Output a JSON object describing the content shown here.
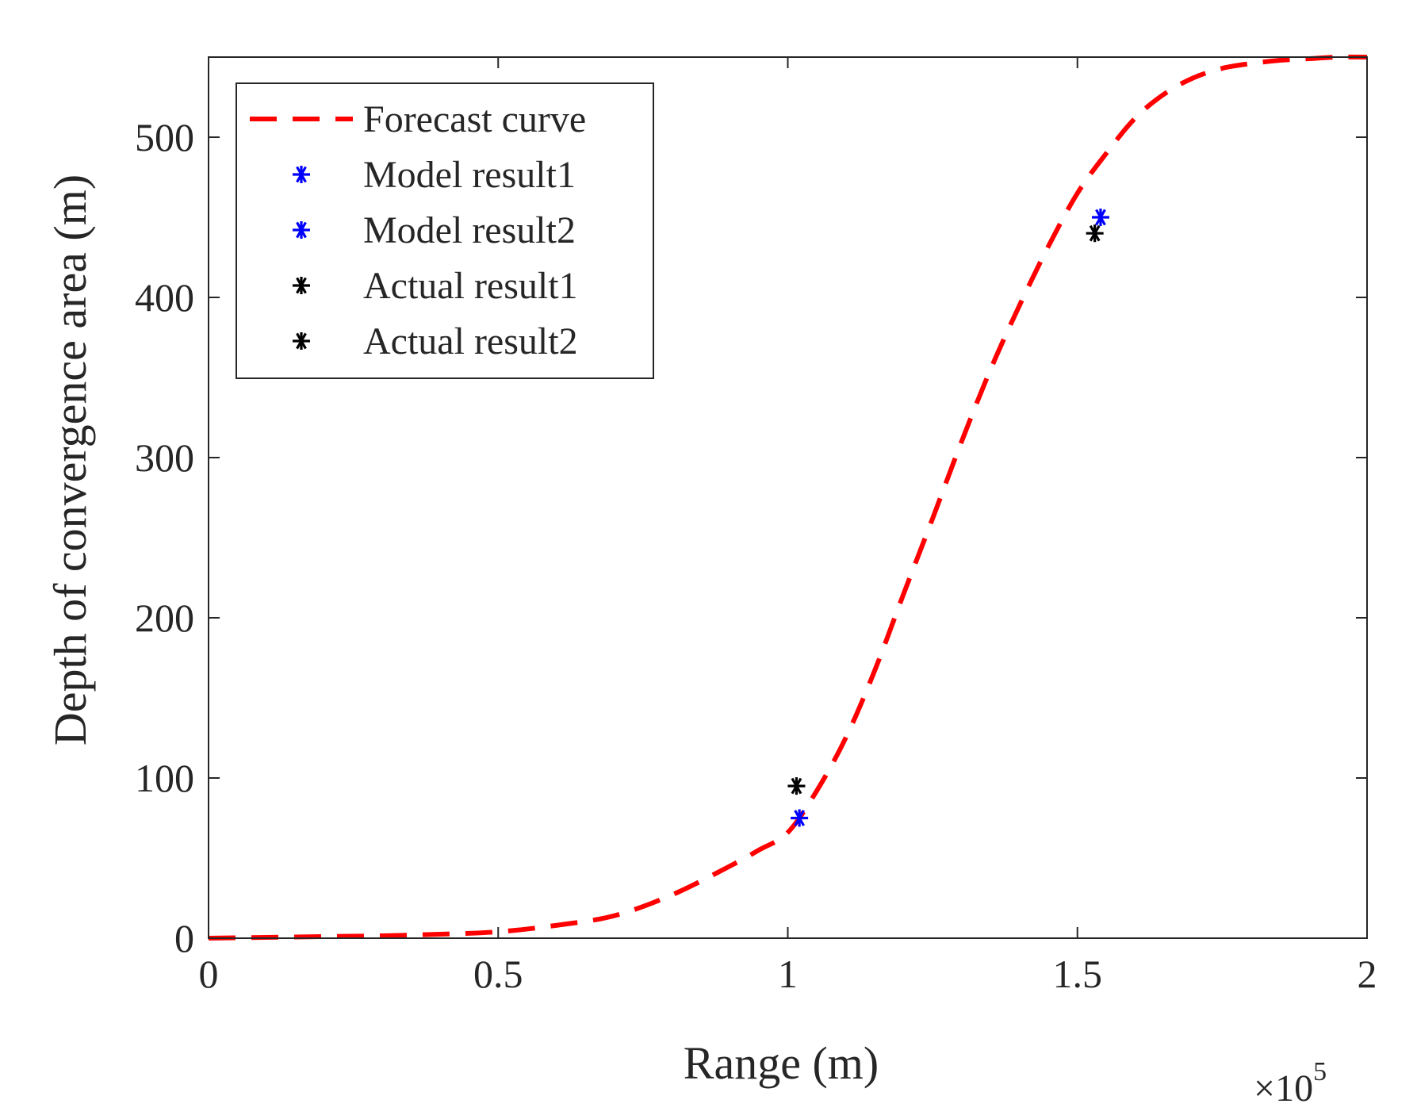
{
  "chart_data": {
    "type": "line",
    "title": "",
    "xlabel": "Range (m)",
    "ylabel": "Depth of convergence area (m)",
    "x_scale_label": "×10",
    "x_scale_exponent": "5",
    "xlim": [
      0,
      2
    ],
    "ylim": [
      0,
      550
    ],
    "x_ticks": [
      0,
      0.5,
      1,
      1.5,
      2
    ],
    "x_tick_labels": [
      "0",
      "0.5",
      "1",
      "1.5",
      "2"
    ],
    "y_ticks": [
      0,
      100,
      200,
      300,
      400,
      500
    ],
    "y_tick_labels": [
      "0",
      "100",
      "200",
      "300",
      "400",
      "500"
    ],
    "grid": false,
    "legend_position": "top-left",
    "series": [
      {
        "name": "Forecast curve",
        "style": "dashed-line",
        "color": "#ff0000",
        "x": [
          0,
          0.1,
          0.2,
          0.3,
          0.4,
          0.5,
          0.6,
          0.7,
          0.8,
          0.9,
          0.95,
          1.0,
          1.05,
          1.1,
          1.15,
          1.2,
          1.25,
          1.3,
          1.35,
          1.4,
          1.45,
          1.5,
          1.55,
          1.6,
          1.65,
          1.7,
          1.75,
          1.8,
          1.85,
          1.9,
          1.95,
          2.0
        ],
        "y": [
          0,
          0.5,
          1,
          1.5,
          2.5,
          4,
          8,
          14,
          27,
          45,
          55,
          66,
          92,
          125,
          167,
          215,
          262,
          310,
          355,
          395,
          432,
          465,
          490,
          512,
          527,
          537,
          543,
          546,
          548,
          549,
          550,
          550
        ]
      },
      {
        "name": "Model result1",
        "style": "asterisk",
        "color": "#0000ff",
        "x": [
          1.02
        ],
        "y": [
          75
        ]
      },
      {
        "name": "Model result2",
        "style": "asterisk",
        "color": "#0000ff",
        "x": [
          1.54
        ],
        "y": [
          450
        ]
      },
      {
        "name": "Actual result1",
        "style": "asterisk",
        "color": "#000000",
        "x": [
          1.015
        ],
        "y": [
          95
        ]
      },
      {
        "name": "Actual result2",
        "style": "asterisk",
        "color": "#000000",
        "x": [
          1.53
        ],
        "y": [
          440
        ]
      }
    ]
  }
}
